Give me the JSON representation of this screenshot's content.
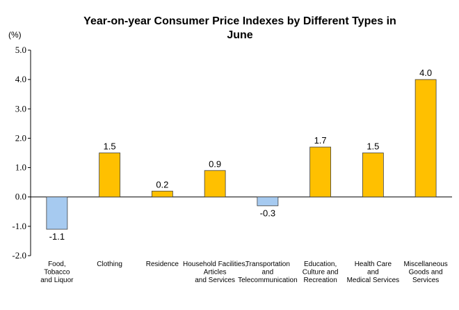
{
  "chart_data": {
    "type": "bar",
    "title": "Year-on-year Consumer Price Indexes by Different Types in June",
    "title_lines": [
      "Year-on-year Consumer Price Indexes by Different Types in",
      "June"
    ],
    "unit_label": "(%)",
    "ylim": [
      -2.0,
      5.0
    ],
    "yticks": [
      "5.0",
      "4.0",
      "3.0",
      "2.0",
      "1.0",
      "0.0",
      "-1.0",
      "-2.0"
    ],
    "categories": [
      "Food, Tobacco and Liquor",
      "Clothing",
      "Residence",
      "Household Facilities, Articles and Services",
      "Transportation and Telecommunication",
      "Education, Culture and Recreation",
      "Health Care and Medical Services",
      "Miscellaneous Goods and Services"
    ],
    "category_lines": [
      [
        "Food,",
        "Tobacco",
        "and Liquor"
      ],
      [
        "Clothing"
      ],
      [
        "Residence"
      ],
      [
        "Household Facilities,",
        "Articles",
        "and Services"
      ],
      [
        "Transportation",
        "and",
        "Telecommunication"
      ],
      [
        "Education,",
        "Culture and",
        "Recreation"
      ],
      [
        "Health Care",
        "and",
        "Medical Services"
      ],
      [
        "Miscellaneous",
        "Goods and",
        "Services"
      ]
    ],
    "values": [
      -1.1,
      1.5,
      0.2,
      0.9,
      -0.3,
      1.7,
      1.5,
      4.0
    ],
    "value_labels": [
      "-1.1",
      "1.5",
      "0.2",
      "0.9",
      "-0.3",
      "1.7",
      "1.5",
      "4.0"
    ],
    "colors": {
      "positive": "#FFC000",
      "negative": "#A6CAF0",
      "stroke": "#404040"
    },
    "grid": false
  }
}
